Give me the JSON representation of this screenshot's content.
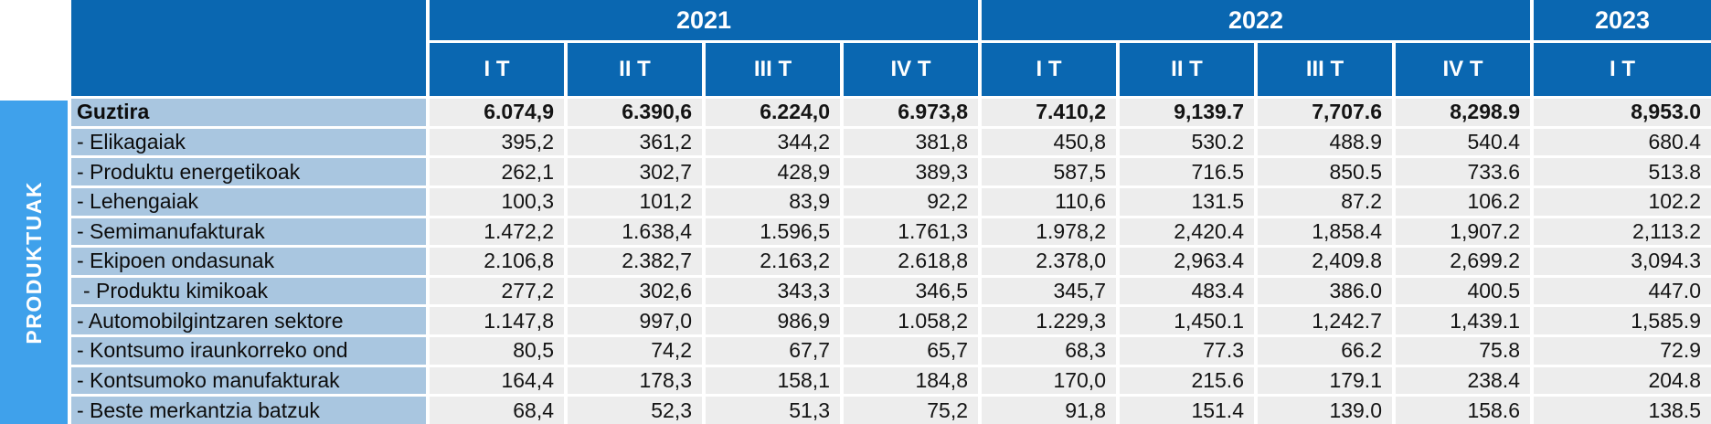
{
  "sidebar": {
    "label": "PRODUKTUAK"
  },
  "colors": {
    "header_blue": "#0a67b1",
    "sidebar_blue": "#3fa1eb",
    "row_label_bg": "#a9c6e0",
    "data_cell_bg": "#ededed",
    "grid_gap": "#ffffff"
  },
  "table": {
    "year_groups": [
      {
        "label": "2021",
        "span": 4
      },
      {
        "label": "2022",
        "span": 4
      },
      {
        "label": "2023",
        "span": 1
      }
    ],
    "quarter_headers": [
      "I T",
      "II T",
      "III T",
      "IV T",
      "I T",
      "II T",
      "III T",
      "IV T",
      "I T"
    ],
    "rows": [
      {
        "label": "Guztira",
        "bold": true,
        "indent": false,
        "values": [
          "6.074,9",
          "6.390,6",
          "6.224,0",
          "6.973,8",
          "7.410,2",
          "9,139.7",
          "7,707.6",
          "8,298.9",
          "8,953.0"
        ]
      },
      {
        "label": "- Elikagaiak",
        "bold": false,
        "indent": false,
        "values": [
          "395,2",
          "361,2",
          "344,2",
          "381,8",
          "450,8",
          "530.2",
          "488.9",
          "540.4",
          "680.4"
        ]
      },
      {
        "label": "- Produktu energetikoak",
        "bold": false,
        "indent": false,
        "values": [
          "262,1",
          "302,7",
          "428,9",
          "389,3",
          "587,5",
          "716.5",
          "850.5",
          "733.6",
          "513.8"
        ]
      },
      {
        "label": "- Lehengaiak",
        "bold": false,
        "indent": false,
        "values": [
          "100,3",
          "101,2",
          "83,9",
          "92,2",
          "110,6",
          "131.5",
          "87.2",
          "106.2",
          "102.2"
        ]
      },
      {
        "label": "- Semimanufakturak",
        "bold": false,
        "indent": false,
        "values": [
          "1.472,2",
          "1.638,4",
          "1.596,5",
          "1.761,3",
          "1.978,2",
          "2,420.4",
          "1,858.4",
          "1,907.2",
          "2,113.2"
        ]
      },
      {
        "label": "- Ekipoen ondasunak",
        "bold": false,
        "indent": false,
        "values": [
          "2.106,8",
          "2.382,7",
          "2.163,2",
          "2.618,8",
          "2.378,0",
          "2,963.4",
          "2,409.8",
          "2,699.2",
          "3,094.3"
        ]
      },
      {
        "label": "- Produktu kimikoak",
        "bold": false,
        "indent": true,
        "values": [
          "277,2",
          "302,6",
          "343,3",
          "346,5",
          "345,7",
          "483.4",
          "386.0",
          "400.5",
          "447.0"
        ]
      },
      {
        "label": "- Automobilgintzaren sektore",
        "bold": false,
        "indent": false,
        "values": [
          "1.147,8",
          "997,0",
          "986,9",
          "1.058,2",
          "1.229,3",
          "1,450.1",
          "1,242.7",
          "1,439.1",
          "1,585.9"
        ]
      },
      {
        "label": "- Kontsumo iraunkorreko ond",
        "bold": false,
        "indent": false,
        "values": [
          "80,5",
          "74,2",
          "67,7",
          "65,7",
          "68,3",
          "77.3",
          "66.2",
          "75.8",
          "72.9"
        ]
      },
      {
        "label": "- Kontsumoko manufakturak",
        "bold": false,
        "indent": false,
        "values": [
          "164,4",
          "178,3",
          "158,1",
          "184,8",
          "170,0",
          "215.6",
          "179.1",
          "238.4",
          "204.8"
        ]
      },
      {
        "label": "- Beste merkantzia batzuk",
        "bold": false,
        "indent": false,
        "values": [
          "68,4",
          "52,3",
          "51,3",
          "75,2",
          "91,8",
          "151.4",
          "139.0",
          "158.6",
          "138.5"
        ]
      }
    ]
  }
}
